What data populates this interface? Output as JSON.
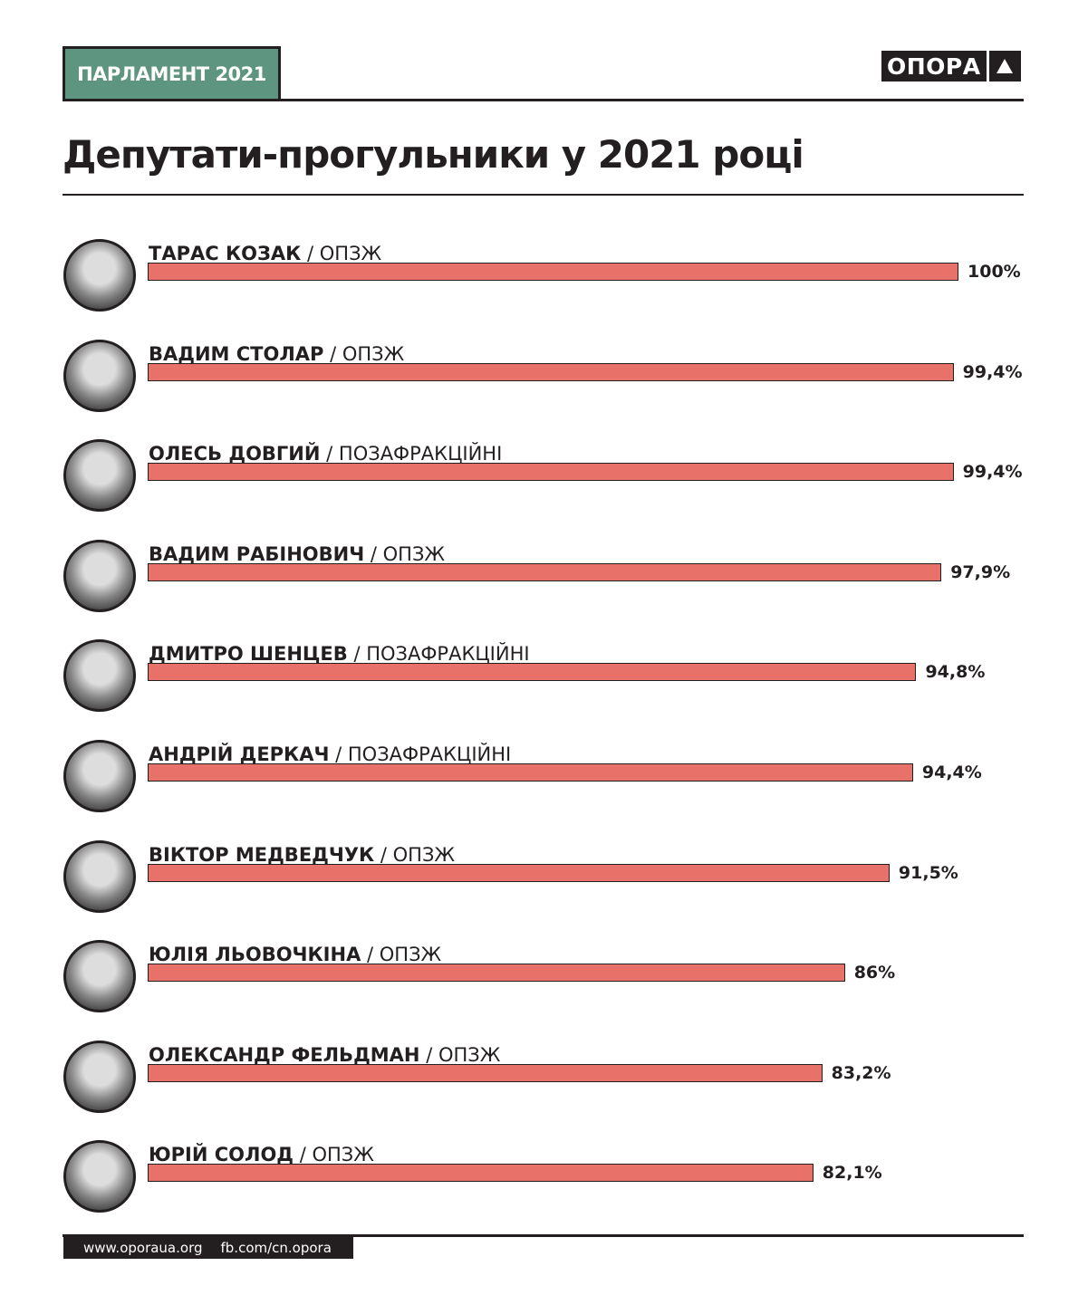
{
  "header": {
    "badge": "ПАРЛАМЕНТ 2021",
    "logo": "ОПОРА"
  },
  "chart_data": {
    "type": "bar",
    "orientation": "horizontal",
    "title": "Депутати-прогульники у 2021 році",
    "xlim": [
      0,
      100
    ],
    "categories": [
      "ТАРАС КОЗАК",
      "ВАДИМ СТОЛАР",
      "ОЛЕСЬ ДОВГИЙ",
      "ВАДИМ РАБІНОВИЧ",
      "ДМИТРО ШЕНЦЕВ",
      "АНДРІЙ ДЕРКАЧ",
      "ВІКТОР МЕДВЕДЧУК",
      "ЮЛІЯ ЛЬОВОЧКІНА",
      "ОЛЕКСАНДР ФЕЛЬДМАН",
      "ЮРІЙ СОЛОД"
    ],
    "factions": [
      "/ ОПЗЖ",
      "/ ОПЗЖ",
      "/ ПОЗАФРАКЦІЙНІ",
      "/ ОПЗЖ",
      "/ ПОЗАФРАКЦІЙНІ",
      "/ ПОЗАФРАКЦІЙНІ",
      "/ ОПЗЖ",
      "/ ОПЗЖ",
      "/ ОПЗЖ",
      "/ ОПЗЖ"
    ],
    "values": [
      100,
      99.4,
      99.4,
      97.9,
      94.8,
      94.4,
      91.5,
      86,
      83.2,
      82.1
    ],
    "labels": [
      "100%",
      "99,4%",
      "99,4%",
      "97,9%",
      "94,8%",
      "94,4%",
      "91,5%",
      "86%",
      "83,2%",
      "82,1%"
    ],
    "bar_color": "#e8716a"
  },
  "footer": {
    "site": "www.oporaua.org",
    "fb": "fb.com/cn.opora"
  }
}
